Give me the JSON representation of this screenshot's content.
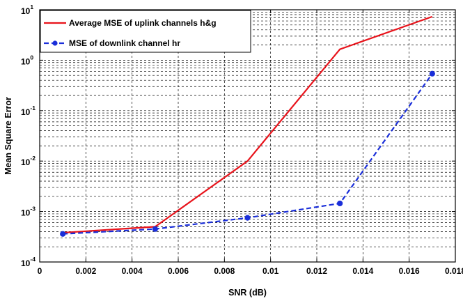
{
  "chart_data": {
    "type": "line",
    "xlabel": "SNR (dB)",
    "ylabel": "Mean Square Error",
    "xlim": [
      0,
      0.018
    ],
    "ylim": [
      0.0001,
      10
    ],
    "yscale": "log",
    "grid": true,
    "legend_position": "top-left",
    "x_ticks": [
      "0",
      "0.002",
      "0.004",
      "0.006",
      "0.008",
      "0.01",
      "0.012",
      "0.014",
      "0.016",
      "0.018"
    ],
    "y_ticks": [
      {
        "base": "10",
        "exp": "-4"
      },
      {
        "base": "10",
        "exp": "-3"
      },
      {
        "base": "10",
        "exp": "-2"
      },
      {
        "base": "10",
        "exp": "-1"
      },
      {
        "base": "10",
        "exp": "0"
      },
      {
        "base": "10",
        "exp": "1"
      }
    ],
    "series": [
      {
        "name": "Average MSE of uplink channels h&g",
        "color": "#e8131b",
        "style": "solid",
        "marker": "none",
        "x": [
          0.001,
          0.005,
          0.009,
          0.013,
          0.017
        ],
        "y": [
          0.00038,
          0.0005,
          0.01,
          1.65,
          7.3
        ]
      },
      {
        "name": "MSE of downlink channel hr",
        "color": "#1a2ed9",
        "style": "dashed",
        "marker": "circle",
        "x": [
          0.001,
          0.005,
          0.009,
          0.013,
          0.017
        ],
        "y": [
          0.00036,
          0.00045,
          0.00075,
          0.00145,
          0.54
        ]
      }
    ]
  }
}
